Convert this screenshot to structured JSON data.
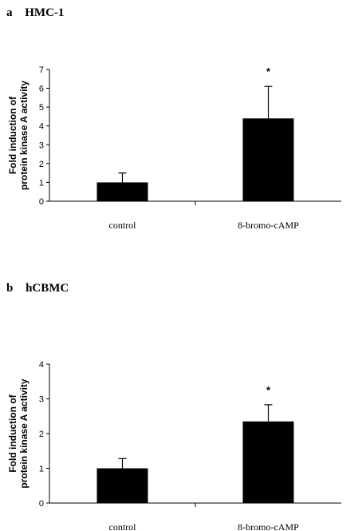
{
  "chart_data": [
    {
      "type": "bar",
      "panel_letter": "a",
      "title": "HMC-1",
      "ylabel_lines": [
        "Fold induction of",
        "protein kinase A activity"
      ],
      "categories": [
        "control",
        "8-bromo-cAMP"
      ],
      "values": [
        1.0,
        4.4
      ],
      "errors": [
        0.5,
        1.7
      ],
      "significance": [
        "",
        "*"
      ],
      "yticks": [
        "0",
        "1",
        "2",
        "3",
        "4",
        "5",
        "6",
        "7"
      ],
      "ylim": [
        0,
        7
      ],
      "bar_color": "#000000"
    },
    {
      "type": "bar",
      "panel_letter": "b",
      "title": "hCBMC",
      "ylabel_lines": [
        "Fold induction of",
        "protein kinase A activity"
      ],
      "categories": [
        "control",
        "8-bromo-cAMP"
      ],
      "values": [
        1.0,
        2.35
      ],
      "errors": [
        0.28,
        0.48
      ],
      "significance": [
        "",
        "*"
      ],
      "yticks": [
        "0",
        "1",
        "2",
        "3",
        "4"
      ],
      "ylim": [
        0,
        4
      ],
      "bar_color": "#000000"
    }
  ]
}
